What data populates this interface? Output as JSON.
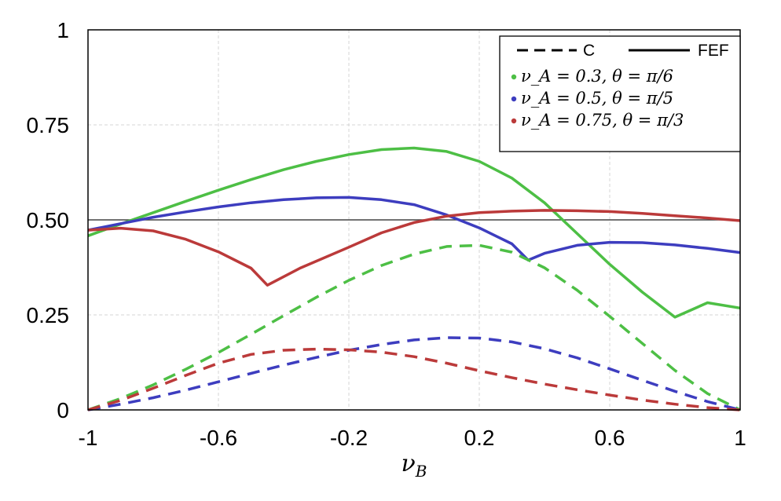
{
  "chart_data": {
    "type": "line",
    "title": "",
    "xlabel": "ν_B",
    "xlabel_main": "ν",
    "xlabel_sub": "B",
    "ylabel": "",
    "xlim": [
      -1,
      1
    ],
    "ylim": [
      0,
      1
    ],
    "x_ticks": [
      -1,
      -0.6,
      -0.2,
      0.2,
      0.6,
      1
    ],
    "x_tick_labels": [
      "-1",
      "-0.6",
      "-0.2",
      "0.2",
      "0.6",
      "1"
    ],
    "y_ticks": [
      0,
      0.25,
      0.5,
      0.75,
      1
    ],
    "y_tick_labels": [
      "0",
      "0.25",
      "0.50",
      "0.75",
      "1"
    ],
    "grid": true,
    "reference_line": {
      "y": 0.5,
      "color": "#444444"
    },
    "legend": {
      "placement": "top-right",
      "styles": [
        {
          "label": "C",
          "dash": "dashed"
        },
        {
          "label": "FEF",
          "dash": "solid"
        }
      ],
      "entries": [
        {
          "label": "ν_A = 0.3,  θ = π/6",
          "color": "#4dbf45"
        },
        {
          "label": "ν_A = 0.5,  θ = π/5",
          "color": "#3d3dbf"
        },
        {
          "label": "ν_A = 0.75, θ = π/3",
          "color": "#bb3a3a"
        }
      ]
    },
    "series": [
      {
        "color": "#4dbf45",
        "style": "solid",
        "x": [
          -1,
          -0.9,
          -0.8,
          -0.7,
          -0.6,
          -0.5,
          -0.4,
          -0.3,
          -0.2,
          -0.1,
          0,
          0.1,
          0.2,
          0.3,
          0.4,
          0.5,
          0.6,
          0.7,
          0.8,
          0.9,
          1
        ],
        "y": [
          0.458,
          0.489,
          0.519,
          0.549,
          0.578,
          0.606,
          0.632,
          0.654,
          0.672,
          0.685,
          0.689,
          0.68,
          0.654,
          0.61,
          0.545,
          0.464,
          0.383,
          0.31,
          0.244,
          0.282,
          0.268
        ]
      },
      {
        "color": "#3d3dbf",
        "style": "solid",
        "x": [
          -1,
          -0.9,
          -0.8,
          -0.7,
          -0.6,
          -0.5,
          -0.4,
          -0.3,
          -0.2,
          -0.1,
          0,
          0.1,
          0.2,
          0.3,
          0.35,
          0.4,
          0.5,
          0.6,
          0.7,
          0.8,
          0.9,
          1
        ],
        "y": [
          0.473,
          0.49,
          0.507,
          0.521,
          0.534,
          0.545,
          0.553,
          0.558,
          0.559,
          0.553,
          0.54,
          0.513,
          0.479,
          0.437,
          0.394,
          0.412,
          0.433,
          0.441,
          0.44,
          0.434,
          0.425,
          0.414
        ]
      },
      {
        "color": "#bb3a3a",
        "style": "solid",
        "x": [
          -1,
          -0.9,
          -0.8,
          -0.7,
          -0.6,
          -0.5,
          -0.45,
          -0.35,
          -0.2,
          -0.1,
          0,
          0.1,
          0.2,
          0.3,
          0.4,
          0.5,
          0.6,
          0.7,
          0.8,
          0.9,
          1
        ],
        "y": [
          0.473,
          0.478,
          0.471,
          0.449,
          0.416,
          0.373,
          0.328,
          0.373,
          0.428,
          0.466,
          0.493,
          0.51,
          0.519,
          0.523,
          0.525,
          0.524,
          0.522,
          0.517,
          0.511,
          0.505,
          0.498
        ]
      },
      {
        "color": "#4dbf45",
        "style": "dashed",
        "x": [
          -1,
          -0.9,
          -0.8,
          -0.7,
          -0.6,
          -0.5,
          -0.4,
          -0.3,
          -0.2,
          -0.1,
          0,
          0.1,
          0.2,
          0.3,
          0.4,
          0.5,
          0.6,
          0.7,
          0.8,
          0.9,
          1
        ],
        "y": [
          0.0,
          0.03,
          0.066,
          0.107,
          0.151,
          0.199,
          0.248,
          0.296,
          0.341,
          0.38,
          0.41,
          0.43,
          0.433,
          0.415,
          0.374,
          0.315,
          0.246,
          0.175,
          0.104,
          0.043,
          0.0
        ]
      },
      {
        "color": "#3d3dbf",
        "style": "dashed",
        "x": [
          -1,
          -0.9,
          -0.8,
          -0.7,
          -0.6,
          -0.5,
          -0.4,
          -0.3,
          -0.2,
          -0.1,
          0,
          0.1,
          0.2,
          0.3,
          0.4,
          0.5,
          0.6,
          0.7,
          0.8,
          0.9,
          1
        ],
        "y": [
          0.0,
          0.015,
          0.032,
          0.052,
          0.074,
          0.096,
          0.118,
          0.138,
          0.157,
          0.172,
          0.184,
          0.19,
          0.189,
          0.179,
          0.161,
          0.137,
          0.108,
          0.078,
          0.049,
          0.022,
          0.0
        ]
      },
      {
        "color": "#bb3a3a",
        "style": "dashed",
        "x": [
          -1,
          -0.9,
          -0.8,
          -0.7,
          -0.6,
          -0.5,
          -0.4,
          -0.3,
          -0.2,
          -0.1,
          0,
          0.1,
          0.2,
          0.3,
          0.4,
          0.5,
          0.6,
          0.7,
          0.8,
          0.9,
          1
        ],
        "y": [
          0.0,
          0.025,
          0.057,
          0.091,
          0.123,
          0.146,
          0.157,
          0.16,
          0.158,
          0.152,
          0.14,
          0.123,
          0.103,
          0.085,
          0.068,
          0.053,
          0.039,
          0.026,
          0.015,
          0.006,
          0.0
        ]
      }
    ]
  }
}
